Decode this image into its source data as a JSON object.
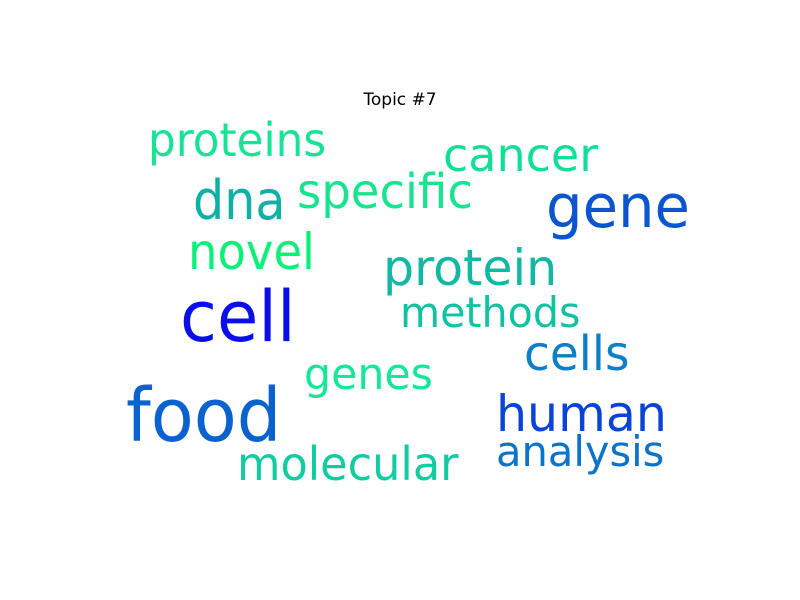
{
  "chart_data": {
    "type": "wordcloud",
    "title": "Topic #7",
    "words": [
      {
        "text": "proteins",
        "color": "#17e394"
      },
      {
        "text": "cancer",
        "color": "#10e096"
      },
      {
        "text": "dna",
        "color": "#10b0a4"
      },
      {
        "text": "specific",
        "color": "#1ae390"
      },
      {
        "text": "gene",
        "color": "#0b55cf"
      },
      {
        "text": "novel",
        "color": "#0cef78"
      },
      {
        "text": "protein",
        "color": "#12b8a2"
      },
      {
        "text": "cell",
        "color": "#0a0fea"
      },
      {
        "text": "methods",
        "color": "#0fc3a0"
      },
      {
        "text": "cells",
        "color": "#0b80c8"
      },
      {
        "text": "genes",
        "color": "#15e69a"
      },
      {
        "text": "food",
        "color": "#0a62cf"
      },
      {
        "text": "human",
        "color": "#0a44d6"
      },
      {
        "text": "molecular",
        "color": "#11cba1"
      },
      {
        "text": "analysis",
        "color": "#0b74c8"
      }
    ]
  }
}
